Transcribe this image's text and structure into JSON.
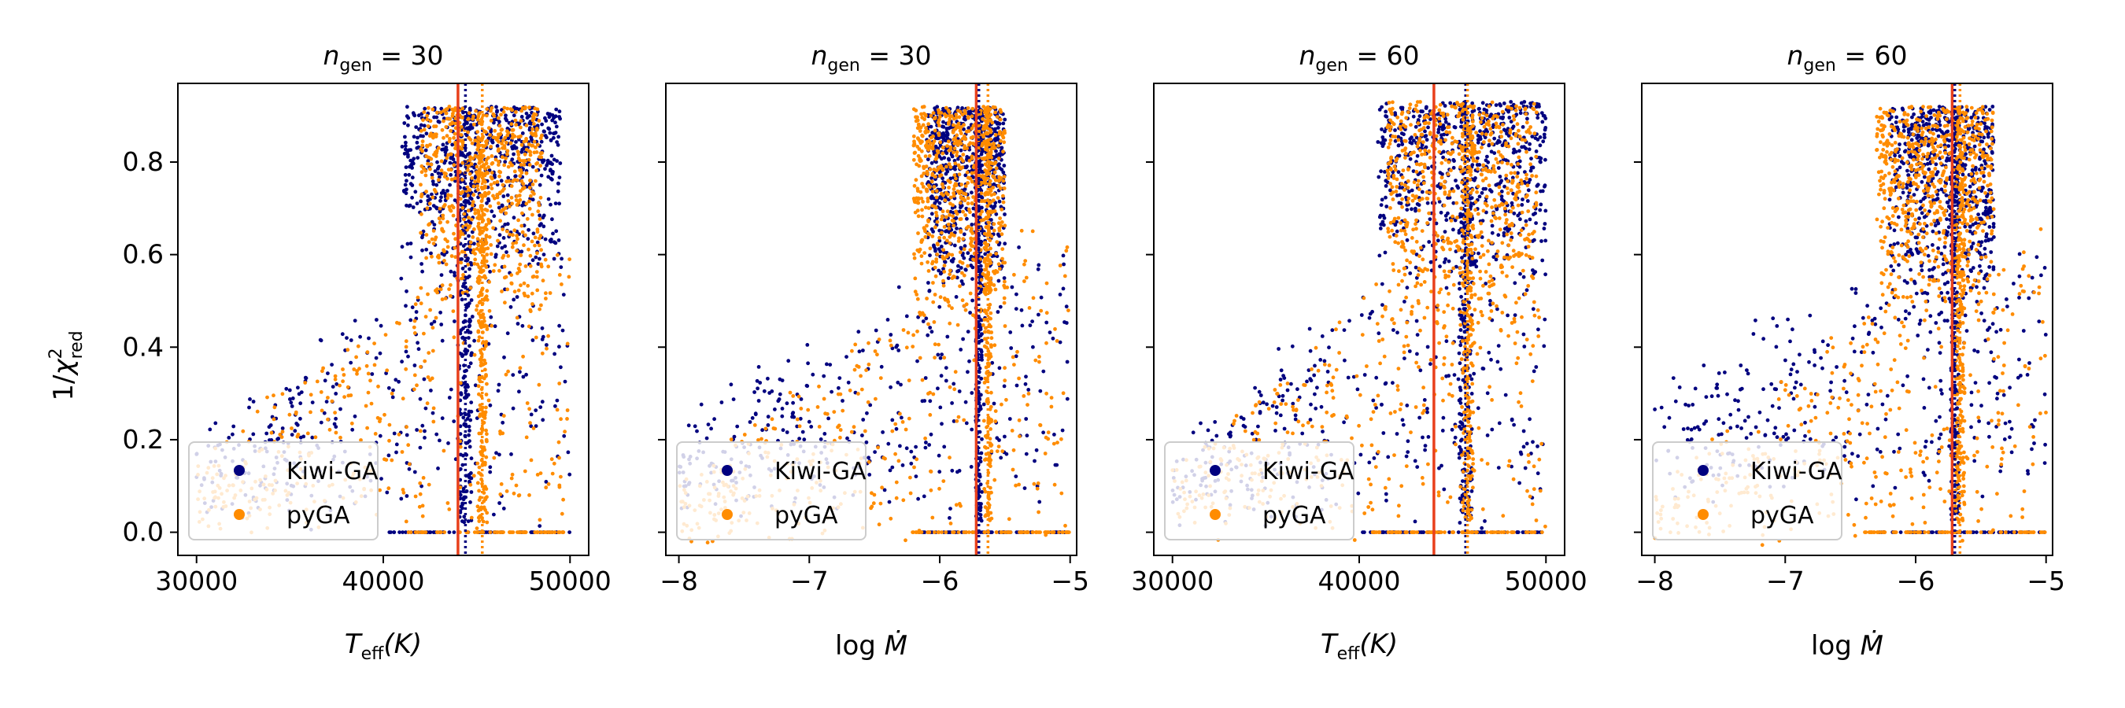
{
  "chart_data": [
    {
      "type": "scatter",
      "panel": 1,
      "title": "n_gen = 30",
      "title_main": "n",
      "title_sub": "gen",
      "title_rest": " = 30",
      "xlabel": "T_eff(K)",
      "xlabel_main": "T",
      "xlabel_sub": "eff",
      "xlabel_rest": "(K)",
      "ylabel": "1/χ²_red",
      "xlim": [
        29000,
        51000
      ],
      "ylim": [
        -0.05,
        0.97
      ],
      "xticks": [
        30000,
        40000,
        50000
      ],
      "xtick_labels": [
        "30000",
        "40000",
        "50000"
      ],
      "yticks": [
        0.0,
        0.2,
        0.4,
        0.6,
        0.8
      ],
      "ytick_labels": [
        "0.0",
        "0.2",
        "0.4",
        "0.6",
        "0.8"
      ],
      "show_yticklabels": true,
      "vlines": [
        {
          "x": 44000,
          "color": "#e8401c",
          "style": "solid"
        },
        {
          "x": 44400,
          "color": "#00007f",
          "style": "dotted"
        },
        {
          "x": 45300,
          "color": "#ff8c00",
          "style": "dotted"
        }
      ],
      "series": [
        {
          "name": "Kiwi-GA",
          "color": "#00007f",
          "cluster": {
            "x": [
              41000,
              49500
            ],
            "y": [
              0.55,
              0.92
            ],
            "best": 44400
          },
          "spread": {
            "x": [
              30000,
              50000
            ],
            "y_low": 0.15,
            "y_high": 0.68
          }
        },
        {
          "name": "pyGA",
          "color": "#ff8c00",
          "cluster": {
            "x": [
              42000,
              48500
            ],
            "y": [
              0.45,
              0.92
            ],
            "best": 45300
          },
          "spread": {
            "x": [
              30000,
              50000
            ],
            "y_low": 0.1,
            "y_high": 0.65
          }
        }
      ],
      "legend": {
        "location": "lower-left",
        "entries": [
          "Kiwi-GA",
          "pyGA"
        ]
      }
    },
    {
      "type": "scatter",
      "panel": 2,
      "title": "n_gen = 30",
      "title_main": "n",
      "title_sub": "gen",
      "title_rest": " = 30",
      "xlabel": "log Ṁ",
      "xlabel_main": "log ",
      "xlabel_sub": "",
      "xlabel_rest": "Ṁ",
      "ylabel": "",
      "xlim": [
        -8.1,
        -4.95
      ],
      "ylim": [
        -0.05,
        0.97
      ],
      "xticks": [
        -8,
        -7,
        -6,
        -5
      ],
      "xtick_labels": [
        "−8",
        "−7",
        "−6",
        "−5"
      ],
      "yticks": [
        0.0,
        0.2,
        0.4,
        0.6,
        0.8
      ],
      "ytick_labels": [
        "",
        "",
        "",
        "",
        ""
      ],
      "show_yticklabels": false,
      "vlines": [
        {
          "x": -5.72,
          "color": "#e8401c",
          "style": "solid"
        },
        {
          "x": -5.7,
          "color": "#00007f",
          "style": "dotted"
        },
        {
          "x": -5.63,
          "color": "#ff8c00",
          "style": "dotted"
        }
      ],
      "series": [
        {
          "name": "Kiwi-GA",
          "color": "#00007f",
          "cluster": {
            "x": [
              -6.1,
              -5.5
            ],
            "y": [
              0.5,
              0.92
            ],
            "best": -5.7
          },
          "spread": {
            "x": [
              -8.0,
              -5.0
            ],
            "y_low": 0.2,
            "y_high": 0.62
          }
        },
        {
          "name": "pyGA",
          "color": "#ff8c00",
          "cluster": {
            "x": [
              -6.2,
              -5.5
            ],
            "y": [
              0.45,
              0.92
            ],
            "best": -5.63
          },
          "spread": {
            "x": [
              -8.0,
              -5.0
            ],
            "y_low": 0.05,
            "y_high": 0.62
          }
        }
      ],
      "legend": {
        "location": "lower-left",
        "entries": [
          "Kiwi-GA",
          "pyGA"
        ]
      }
    },
    {
      "type": "scatter",
      "panel": 3,
      "title": "n_gen = 60",
      "title_main": "n",
      "title_sub": "gen",
      "title_rest": " = 60",
      "xlabel": "T_eff(K)",
      "xlabel_main": "T",
      "xlabel_sub": "eff",
      "xlabel_rest": "(K)",
      "ylabel": "",
      "xlim": [
        29000,
        51000
      ],
      "ylim": [
        -0.05,
        0.97
      ],
      "xticks": [
        30000,
        40000,
        50000
      ],
      "xtick_labels": [
        "30000",
        "40000",
        "50000"
      ],
      "yticks": [
        0.0,
        0.2,
        0.4,
        0.6,
        0.8
      ],
      "ytick_labels": [
        "",
        "",
        "",
        "",
        ""
      ],
      "show_yticklabels": false,
      "vlines": [
        {
          "x": 44000,
          "color": "#e8401c",
          "style": "solid"
        },
        {
          "x": 45700,
          "color": "#00007f",
          "style": "dotted"
        },
        {
          "x": 45800,
          "color": "#ff8c00",
          "style": "dotted"
        }
      ],
      "series": [
        {
          "name": "Kiwi-GA",
          "color": "#00007f",
          "cluster": {
            "x": [
              41000,
              50000
            ],
            "y": [
              0.55,
              0.93
            ],
            "best": 45700
          },
          "spread": {
            "x": [
              30000,
              50000
            ],
            "y_low": 0.15,
            "y_high": 0.7
          }
        },
        {
          "name": "pyGA",
          "color": "#ff8c00",
          "cluster": {
            "x": [
              41500,
              49500
            ],
            "y": [
              0.4,
              0.93
            ],
            "best": 45800
          },
          "spread": {
            "x": [
              30000,
              50000
            ],
            "y_low": 0.1,
            "y_high": 0.65
          }
        }
      ],
      "legend": {
        "location": "lower-left",
        "entries": [
          "Kiwi-GA",
          "pyGA"
        ]
      }
    },
    {
      "type": "scatter",
      "panel": 4,
      "title": "n_gen = 60",
      "title_main": "n",
      "title_sub": "gen",
      "title_rest": " = 60",
      "xlabel": "log Ṁ",
      "xlabel_main": "log ",
      "xlabel_sub": "",
      "xlabel_rest": "Ṁ",
      "ylabel": "",
      "xlim": [
        -8.1,
        -4.95
      ],
      "ylim": [
        -0.05,
        0.97
      ],
      "xticks": [
        -8,
        -7,
        -6,
        -5
      ],
      "xtick_labels": [
        "−8",
        "−7",
        "−6",
        "−5"
      ],
      "yticks": [
        0.0,
        0.2,
        0.4,
        0.6,
        0.8
      ],
      "ytick_labels": [
        "",
        "",
        "",
        "",
        ""
      ],
      "show_yticklabels": false,
      "vlines": [
        {
          "x": -5.72,
          "color": "#e8401c",
          "style": "solid"
        },
        {
          "x": -5.7,
          "color": "#00007f",
          "style": "dotted"
        },
        {
          "x": -5.66,
          "color": "#ff8c00",
          "style": "dotted"
        }
      ],
      "series": [
        {
          "name": "Kiwi-GA",
          "color": "#00007f",
          "cluster": {
            "x": [
              -6.2,
              -5.4
            ],
            "y": [
              0.5,
              0.92
            ],
            "best": -5.7
          },
          "spread": {
            "x": [
              -8.0,
              -5.0
            ],
            "y_low": 0.3,
            "y_high": 0.62
          }
        },
        {
          "name": "pyGA",
          "color": "#ff8c00",
          "cluster": {
            "x": [
              -6.3,
              -5.4
            ],
            "y": [
              0.45,
              0.92
            ],
            "best": -5.66
          },
          "spread": {
            "x": [
              -8.0,
              -5.0
            ],
            "y_low": 0.05,
            "y_high": 0.62
          }
        }
      ],
      "legend": {
        "location": "lower-left",
        "entries": [
          "Kiwi-GA",
          "pyGA"
        ]
      }
    }
  ],
  "ylabel_main": "1/",
  "ylabel_chi": "χ",
  "ylabel_sup": "2",
  "ylabel_sub": "red"
}
